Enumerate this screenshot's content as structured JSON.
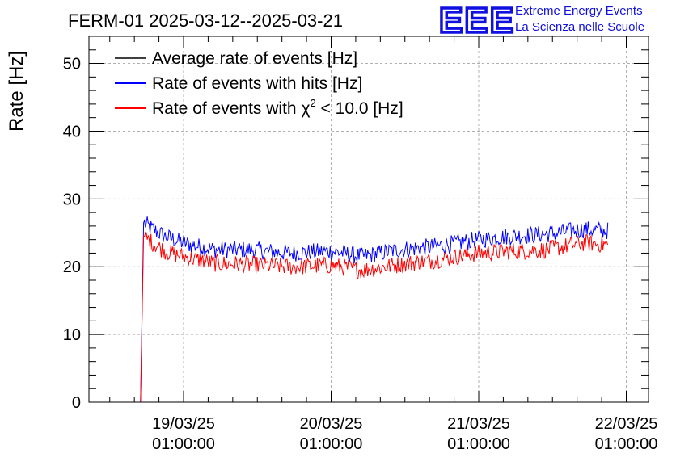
{
  "logo": {
    "letters": "EEE",
    "line1": "Extreme Energy Events",
    "line2": "La Scienza nelle Scuole"
  },
  "chart_data": {
    "type": "line",
    "title": "FERM-01 2025-03-12--2025-03-21",
    "ylabel": "Rate [Hz]",
    "xlabel": "",
    "ylim": [
      0,
      54
    ],
    "yticks": [
      0,
      10,
      20,
      30,
      40,
      50
    ],
    "xlim_days_labels": [
      "19/03/25 01:00:00",
      "20/03/25 01:00:00",
      "21/03/25 01:00:00",
      "22/03/25 01:00:00"
    ],
    "x_axis_unit": "date",
    "grid": true,
    "legend_position": "top-left",
    "legend": [
      {
        "label": "Average rate of events [Hz]",
        "color": "#000000"
      },
      {
        "label": "Rate of events with hits [Hz]",
        "color": "#0000ff"
      },
      {
        "label_prefix": "Rate of events with ",
        "label_symbol": "χ",
        "label_sup": "2",
        "label_suffix": " < 10.0 [Hz]",
        "color": "#ff0000"
      }
    ],
    "series": [
      {
        "name": "Rate of events with hits [Hz]",
        "color": "#0000ff",
        "x": [
          "18/03/25 18:00",
          "18/03/25 18:30",
          "18/03/25 20:00",
          "18/03/25 22:00",
          "19/03/25 01:00",
          "19/03/25 06:00",
          "19/03/25 12:00",
          "19/03/25 18:00",
          "20/03/25 01:00",
          "20/03/25 06:00",
          "20/03/25 12:00",
          "20/03/25 18:00",
          "21/03/25 01:00",
          "21/03/25 06:00",
          "21/03/25 12:00",
          "21/03/25 18:00",
          "21/03/25 22:00"
        ],
        "y": [
          0,
          26.5,
          25.5,
          24.5,
          23.5,
          22.5,
          22.5,
          22.0,
          22.3,
          21.5,
          22.5,
          23.0,
          24.0,
          24.5,
          24.8,
          25.5,
          25.3
        ]
      },
      {
        "name": "Rate of events with χ2 < 10.0 [Hz]",
        "color": "#ff0000",
        "x": [
          "18/03/25 18:00",
          "18/03/25 18:30",
          "18/03/25 20:00",
          "18/03/25 22:00",
          "19/03/25 01:00",
          "19/03/25 06:00",
          "19/03/25 12:00",
          "19/03/25 18:00",
          "20/03/25 01:00",
          "20/03/25 06:00",
          "20/03/25 12:00",
          "20/03/25 18:00",
          "21/03/25 01:00",
          "21/03/25 06:00",
          "21/03/25 12:00",
          "21/03/25 18:00",
          "21/03/25 22:00"
        ],
        "y": [
          0,
          24.5,
          23.5,
          22.3,
          21.5,
          20.5,
          20.3,
          20.0,
          20.2,
          19.5,
          20.3,
          21.0,
          22.0,
          22.3,
          22.5,
          23.5,
          23.3
        ]
      }
    ]
  }
}
